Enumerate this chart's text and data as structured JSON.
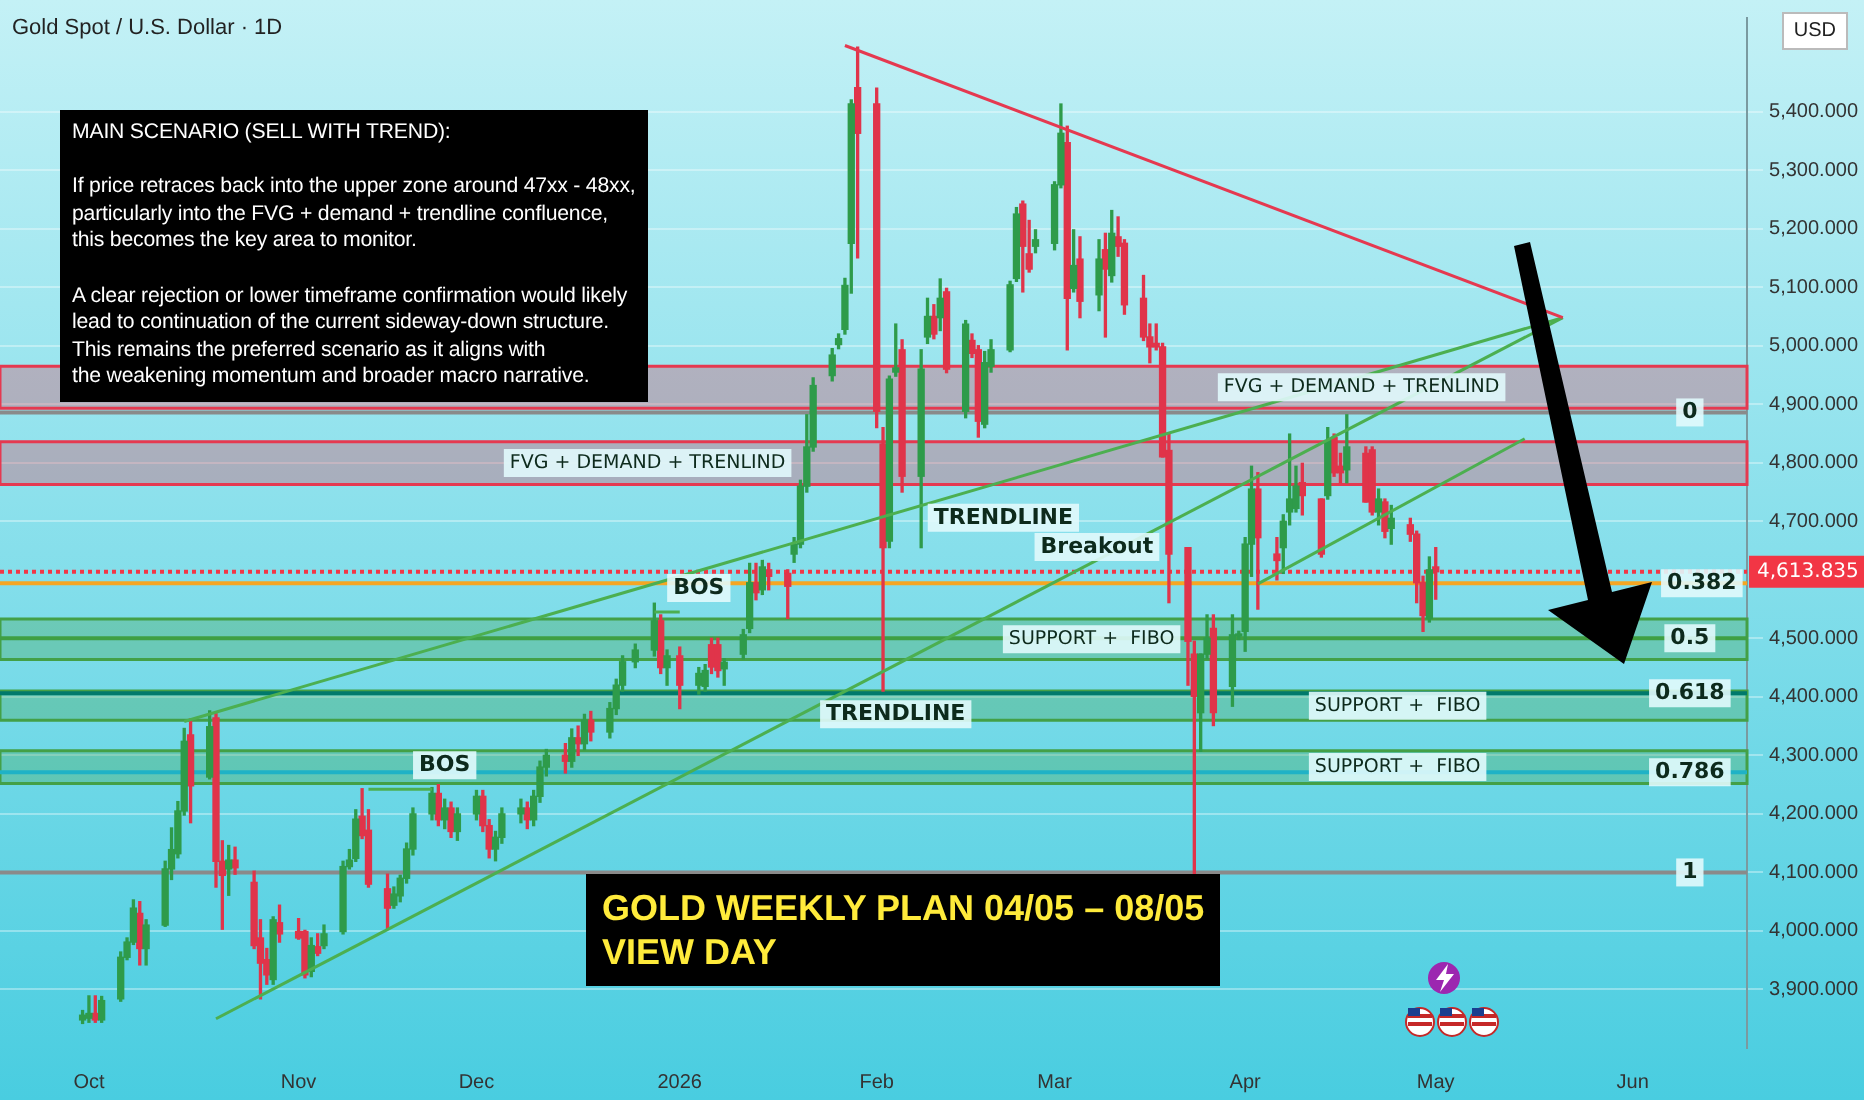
{
  "chart_data": {
    "type": "candlestick",
    "title": "GOLD WEEKLY PLAN 04/05 – 08/05\nVIEW DAY",
    "subtitle": "Gold Spot / U.S. Dollar · 1D",
    "ylabel": "USD",
    "xlim": [
      "2025-09-17",
      "2026-06-19"
    ],
    "xticks": [
      {
        "value": "2025-10-01",
        "label": "Oct"
      },
      {
        "value": "2025-11-03",
        "label": "Nov"
      },
      {
        "value": "2025-12-01",
        "label": "Dec"
      },
      {
        "value": "2026-01-02",
        "label": "2026"
      },
      {
        "value": "2026-02-02",
        "label": "Feb"
      },
      {
        "value": "2026-03-02",
        "label": "Mar"
      },
      {
        "value": "2026-04-01",
        "label": "Apr"
      },
      {
        "value": "2026-05-01",
        "label": "May"
      },
      {
        "value": "2026-06-01",
        "label": "Jun"
      }
    ],
    "ylim": [
      3800,
      5560
    ],
    "yticks": [
      {
        "value": 3900,
        "label": "3,900.000"
      },
      {
        "value": 4000,
        "label": "4,000.000"
      },
      {
        "value": 4100,
        "label": "4,100.000"
      },
      {
        "value": 4200,
        "label": "4,200.000"
      },
      {
        "value": 4300,
        "label": "4,300.000"
      },
      {
        "value": 4400,
        "label": "4,400.000"
      },
      {
        "value": 4500,
        "label": "4,500.000"
      },
      {
        "value": 4700,
        "label": "4,700.000"
      },
      {
        "value": 4800,
        "label": "4,800.000"
      },
      {
        "value": 4900,
        "label": "4,900.000"
      },
      {
        "value": 5000,
        "label": "5,000.000"
      },
      {
        "value": 5100,
        "label": "5,100.000"
      },
      {
        "value": 5200,
        "label": "5,200.000"
      },
      {
        "value": 5300,
        "label": "5,300.000"
      },
      {
        "value": 5400,
        "label": "5,400.000"
      }
    ],
    "grid": "y",
    "legend": false,
    "series": [
      {
        "color": "#2e9b4a",
        "x": [
          "2025-09-30",
          "2025-10-01",
          "2025-10-03",
          "2025-10-06",
          "2025-10-07",
          "2025-10-08",
          "2025-10-10",
          "2025-10-13",
          "2025-10-14",
          "2025-10-15",
          "2025-10-16",
          "2025-10-20",
          "2025-10-23",
          "2025-10-30",
          "2025-11-05",
          "2025-11-07",
          "2025-11-10",
          "2025-11-11",
          "2025-11-12",
          "2025-11-18",
          "2025-11-19",
          "2025-11-20",
          "2025-11-21",
          "2025-11-24",
          "2025-11-26",
          "2025-11-28",
          "2025-12-01",
          "2025-12-04",
          "2025-12-05",
          "2025-12-08",
          "2025-12-10",
          "2025-12-11",
          "2025-12-12",
          "2025-12-16",
          "2025-12-18",
          "2025-12-22",
          "2025-12-23",
          "2025-12-24",
          "2025-12-26",
          "2025-12-29",
          "2025-12-31",
          "2026-01-05",
          "2026-01-06",
          "2026-01-09",
          "2026-01-12",
          "2026-01-13",
          "2026-01-15",
          "2026-01-20",
          "2026-01-21",
          "2026-01-22",
          "2026-01-23",
          "2026-01-26",
          "2026-01-27",
          "2026-01-28",
          "2026-01-29",
          "2026-02-04",
          "2026-02-05",
          "2026-02-09",
          "2026-02-10",
          "2026-02-12",
          "2026-02-16",
          "2026-02-19",
          "2026-02-20",
          "2026-02-23",
          "2026-02-24",
          "2026-02-27",
          "2026-03-02",
          "2026-03-03",
          "2026-03-05",
          "2026-03-09",
          "2026-03-11",
          "2026-03-25",
          "2026-03-26",
          "2026-03-30",
          "2026-03-31",
          "2026-04-01",
          "2026-04-02",
          "2026-04-07",
          "2026-04-08",
          "2026-04-09",
          "2026-04-14",
          "2026-04-17",
          "2026-04-22",
          "2026-04-24",
          "2026-04-30"
        ],
        "ohlc": [
          [
            3848,
            3864,
            3842,
            3856
          ],
          [
            3851,
            3889,
            3844,
            3859
          ],
          [
            3848,
            3888,
            3844,
            3881
          ],
          [
            3884,
            3964,
            3880,
            3955
          ],
          [
            3955,
            3988,
            3951,
            3981
          ],
          [
            3981,
            4053,
            3977,
            4039
          ],
          [
            3970,
            4019,
            3942,
            4010
          ],
          [
            4010,
            4119,
            4008,
            4106
          ],
          [
            4106,
            4176,
            4088,
            4139
          ],
          [
            4132,
            4221,
            4125,
            4205
          ],
          [
            4205,
            4346,
            4198,
            4324
          ],
          [
            4263,
            4376,
            4260,
            4349
          ],
          [
            4106,
            4146,
            4061,
            4121
          ],
          [
            3917,
            4024,
            3909,
            4019
          ],
          [
            3931,
            3988,
            3922,
            3975
          ],
          [
            3975,
            4010,
            3970,
            3995
          ],
          [
            3999,
            4119,
            3995,
            4110
          ],
          [
            4110,
            4139,
            4106,
            4121
          ],
          [
            4124,
            4207,
            4119,
            4191
          ],
          [
            4044,
            4075,
            4039,
            4063
          ],
          [
            4060,
            4095,
            4050,
            4090
          ],
          [
            4090,
            4150,
            4082,
            4140
          ],
          [
            4140,
            4210,
            4130,
            4200
          ],
          [
            4200,
            4245,
            4190,
            4235
          ],
          [
            4190,
            4225,
            4175,
            4210
          ],
          [
            4170,
            4210,
            4155,
            4200
          ],
          [
            4200,
            4240,
            4190,
            4230
          ],
          [
            4140,
            4170,
            4120,
            4160
          ],
          [
            4160,
            4210,
            4150,
            4200
          ],
          [
            4200,
            4225,
            4185,
            4210
          ],
          [
            4190,
            4240,
            4180,
            4230
          ],
          [
            4230,
            4290,
            4220,
            4280
          ],
          [
            4280,
            4310,
            4265,
            4300
          ],
          [
            4290,
            4345,
            4280,
            4330
          ],
          [
            4320,
            4370,
            4310,
            4360
          ],
          [
            4340,
            4390,
            4330,
            4380
          ],
          [
            4380,
            4430,
            4370,
            4420
          ],
          [
            4420,
            4470,
            4410,
            4460
          ],
          [
            4460,
            4490,
            4450,
            4480
          ],
          [
            4480,
            4560,
            4470,
            4530
          ],
          [
            4450,
            4480,
            4420,
            4470
          ],
          [
            4420,
            4450,
            4405,
            4440
          ],
          [
            4418,
            4455,
            4410,
            4445
          ],
          [
            4448,
            4465,
            4420,
            4459
          ],
          [
            4473,
            4515,
            4465,
            4506
          ],
          [
            4517,
            4628,
            4510,
            4595
          ],
          [
            4583,
            4633,
            4575,
            4622
          ],
          [
            4644,
            4672,
            4630,
            4661
          ],
          [
            4661,
            4770,
            4655,
            4760
          ],
          [
            4760,
            4882,
            4750,
            4827
          ],
          [
            4827,
            4945,
            4820,
            4932
          ],
          [
            4949,
            4995,
            4940,
            4984
          ],
          [
            5002,
            5020,
            4995,
            5012
          ],
          [
            5028,
            5115,
            5020,
            5103
          ],
          [
            5175,
            5420,
            5090,
            5413
          ],
          [
            4666,
            4948,
            4655,
            4943
          ],
          [
            4955,
            5037,
            4948,
            4962
          ],
          [
            4777,
            4993,
            4655,
            4960
          ],
          [
            5015,
            5081,
            5004,
            5050
          ],
          [
            5048,
            5114,
            5026,
            5081
          ],
          [
            4888,
            5043,
            4877,
            5037
          ],
          [
            4866,
            4990,
            4860,
            4971
          ],
          [
            4965,
            5010,
            4955,
            4993
          ],
          [
            4993,
            5110,
            4990,
            5104
          ],
          [
            5115,
            5236,
            5110,
            5225
          ],
          [
            5170,
            5198,
            5159,
            5181
          ],
          [
            5175,
            5280,
            5164,
            5275
          ],
          [
            5275,
            5413,
            5270,
            5363
          ],
          [
            5098,
            5198,
            5092,
            5137
          ],
          [
            5087,
            5181,
            5060,
            5148
          ],
          [
            5120,
            5231,
            5109,
            5192
          ],
          [
            4373,
            4473,
            4307,
            4473
          ],
          [
            4473,
            4540,
            4465,
            4500
          ],
          [
            4418,
            4540,
            4384,
            4506
          ],
          [
            4504,
            4512,
            4498,
            4506
          ],
          [
            4512,
            4672,
            4478,
            4661
          ],
          [
            4661,
            4794,
            4606,
            4755
          ],
          [
            4655,
            4711,
            4611,
            4700
          ],
          [
            4716,
            4849,
            4694,
            4738
          ],
          [
            4722,
            4794,
            4716,
            4760
          ],
          [
            4744,
            4860,
            4738,
            4838
          ],
          [
            4788,
            4882,
            4766,
            4827
          ],
          [
            4716,
            4755,
            4694,
            4738
          ],
          [
            4688,
            4727,
            4661,
            4705
          ],
          [
            4534,
            4639,
            4528,
            4617
          ]
        ]
      },
      {
        "color": "#e0344a",
        "x": [
          "2025-10-02",
          "2025-10-09",
          "2025-10-17",
          "2025-10-21",
          "2025-10-22",
          "2025-10-24",
          "2025-10-27",
          "2025-10-28",
          "2025-10-29",
          "2025-10-31",
          "2025-11-03",
          "2025-11-04",
          "2025-11-06",
          "2025-11-13",
          "2025-11-14",
          "2025-11-17",
          "2025-11-25",
          "2025-11-27",
          "2025-12-02",
          "2025-12-03",
          "2025-12-09",
          "2025-12-15",
          "2025-12-17",
          "2025-12-19",
          "2025-12-30",
          "2026-01-02",
          "2026-01-07",
          "2026-01-08",
          "2026-01-14",
          "2026-01-16",
          "2026-01-19",
          "2026-01-30",
          "2026-02-02",
          "2026-02-03",
          "2026-02-06",
          "2026-02-11",
          "2026-02-13",
          "2026-02-17",
          "2026-02-18",
          "2026-02-25",
          "2026-02-26",
          "2026-03-04",
          "2026-03-06",
          "2026-03-10",
          "2026-03-12",
          "2026-03-13",
          "2026-03-16",
          "2026-03-17",
          "2026-03-18",
          "2026-03-19",
          "2026-03-20",
          "2026-03-23",
          "2026-03-24",
          "2026-03-27",
          "2026-04-03",
          "2026-04-06",
          "2026-04-10",
          "2026-04-13",
          "2026-04-15",
          "2026-04-16",
          "2026-04-20",
          "2026-04-21",
          "2026-04-23",
          "2026-04-27",
          "2026-04-28",
          "2026-04-29",
          "2026-05-01"
        ],
        "ohlc": [
          [
            3859,
            3889,
            3844,
            3848
          ],
          [
            4030,
            4050,
            3942,
            3970
          ],
          [
            4335,
            4362,
            4185,
            4248
          ],
          [
            4364,
            4371,
            4075,
            4119
          ],
          [
            4119,
            4154,
            4003,
            4095
          ],
          [
            4121,
            4143,
            4097,
            4108
          ],
          [
            4083,
            4102,
            3970,
            3975
          ],
          [
            3988,
            4019,
            3884,
            3945
          ],
          [
            3951,
            3970,
            3909,
            3925
          ],
          [
            4014,
            4044,
            3981,
            3995
          ],
          [
            3999,
            4021,
            3986,
            3988
          ],
          [
            3999,
            4001,
            3920,
            3925
          ],
          [
            3973,
            3995,
            3958,
            3962
          ],
          [
            4196,
            4243,
            4158,
            4163
          ],
          [
            4172,
            4207,
            4075,
            4080
          ],
          [
            4072,
            4097,
            4003,
            4039
          ],
          [
            4235,
            4250,
            4180,
            4190
          ],
          [
            4210,
            4220,
            4160,
            4170
          ],
          [
            4230,
            4240,
            4170,
            4180
          ],
          [
            4180,
            4190,
            4125,
            4140
          ],
          [
            4210,
            4220,
            4175,
            4190
          ],
          [
            4300,
            4320,
            4270,
            4290
          ],
          [
            4330,
            4350,
            4300,
            4320
          ],
          [
            4360,
            4375,
            4325,
            4340
          ],
          [
            4530,
            4540,
            4440,
            4450
          ],
          [
            4470,
            4485,
            4380,
            4420
          ],
          [
            4489,
            4500,
            4440,
            4451
          ],
          [
            4489,
            4500,
            4434,
            4445
          ],
          [
            4595,
            4628,
            4566,
            4578
          ],
          [
            4617,
            4628,
            4583,
            4606
          ],
          [
            4611,
            4617,
            4534,
            4589
          ],
          [
            5441,
            5510,
            5150,
            5363
          ],
          [
            5413,
            5440,
            4860,
            4888
          ],
          [
            4832,
            4860,
            4410,
            4655
          ],
          [
            4993,
            5010,
            4750,
            4777
          ],
          [
            5050,
            5070,
            5012,
            5020
          ],
          [
            5092,
            5098,
            4954,
            4960
          ],
          [
            5009,
            5020,
            4980,
            4987
          ],
          [
            4993,
            5000,
            4844,
            4871
          ],
          [
            5242,
            5247,
            5092,
            5170
          ],
          [
            5157,
            5214,
            5126,
            5131
          ],
          [
            5347,
            5375,
            4993,
            5081
          ],
          [
            5148,
            5186,
            5048,
            5076
          ],
          [
            5164,
            5192,
            5015,
            5131
          ],
          [
            5186,
            5220,
            5153,
            5170
          ],
          [
            5175,
            5181,
            5054,
            5070
          ],
          [
            5081,
            5120,
            5009,
            5015
          ],
          [
            5015,
            5037,
            4971,
            4998
          ],
          [
            5004,
            5037,
            4993,
            4998
          ],
          [
            4998,
            5004,
            4810,
            4810
          ],
          [
            4821,
            4849,
            4561,
            4644
          ],
          [
            4655,
            4655,
            4420,
            4495
          ],
          [
            4473,
            4495,
            4097,
            4401
          ],
          [
            4517,
            4540,
            4351,
            4373
          ],
          [
            4755,
            4783,
            4550,
            4672
          ],
          [
            4644,
            4672,
            4600,
            4633
          ],
          [
            4766,
            4799,
            4711,
            4744
          ],
          [
            4738,
            4738,
            4639,
            4644
          ],
          [
            4843,
            4849,
            4777,
            4783
          ],
          [
            4794,
            4816,
            4766,
            4783
          ],
          [
            4816,
            4827,
            4733,
            4733
          ],
          [
            4822,
            4827,
            4711,
            4716
          ],
          [
            4733,
            4738,
            4672,
            4683
          ],
          [
            4694,
            4705,
            4666,
            4678
          ],
          [
            4678,
            4683,
            4561,
            4595
          ],
          [
            4595,
            4606,
            4512,
            4539
          ],
          [
            4622,
            4655,
            4567,
            4613.835
          ]
        ]
      },
      {
        "type": "line",
        "color": "#e53950",
        "x": [
          "2026-01-28",
          "2026-05-21"
        ],
        "values": [
          5513,
          5048
        ]
      },
      {
        "type": "line",
        "color": "#4caf50",
        "x": [
          "2025-10-16",
          "2026-05-21"
        ],
        "values": [
          4358,
          5048
        ]
      },
      {
        "type": "line",
        "color": "#4caf50",
        "x": [
          "2025-10-21",
          "2026-05-21"
        ],
        "values": [
          3850,
          5048
        ]
      },
      {
        "type": "line",
        "color": "#4caf50",
        "x": [
          "2026-04-03",
          "2026-05-15"
        ],
        "values": [
          4593,
          4841
        ]
      },
      {
        "type": "line",
        "color": "#4caf50",
        "x": [
          "2025-11-14",
          "2025-11-24"
        ],
        "values": [
          4242,
          4242
        ]
      },
      {
        "type": "line",
        "color": "#4caf50",
        "x": [
          "2025-12-29",
          "2026-01-02"
        ],
        "values": [
          4545,
          4545
        ]
      }
    ],
    "bands": [
      {
        "axis": "y",
        "from": 4893,
        "to": 4965,
        "label": "FVG + DEMAND + TRENLIND",
        "color": "#e53950"
      },
      {
        "axis": "y",
        "from": 4763,
        "to": 4836,
        "label": "FVG + DEMAND + TRENLIND",
        "color": "#e53950"
      },
      {
        "axis": "y",
        "from": 4464,
        "to": 4533,
        "label": "SUPPORT +  FIBO",
        "color": "#43a047"
      },
      {
        "axis": "y",
        "from": 4360,
        "to": 4410,
        "label": "SUPPORT +  FIBO",
        "color": "#43a047"
      },
      {
        "axis": "y",
        "from": 4252,
        "to": 4308,
        "label": "SUPPORT +  FIBO",
        "color": "#43a047"
      }
    ],
    "ref_lines": [
      {
        "axis": "y",
        "value": 4886,
        "color": "#8a8a8a"
      },
      {
        "axis": "y",
        "value": 4594,
        "color": "#f5a623"
      },
      {
        "axis": "y",
        "value": 4500,
        "color": "#3f9f43"
      },
      {
        "axis": "y",
        "value": 4406,
        "color": "#00796b"
      },
      {
        "axis": "y",
        "value": 4271,
        "color": "#1fb2c6"
      },
      {
        "axis": "y",
        "value": 4100,
        "color": "#8a8a8a"
      },
      {
        "axis": "y",
        "value": 4613.835,
        "label": "4,613.835",
        "color": "#f23645",
        "line_style": "dotted"
      }
    ],
    "annotations": [
      "MAIN SCENARIO (SELL WITH TREND):\n\nIf price retraces back into the upper zone around 47xx - 48xx,\nparticularly into the FVG + demand + trendline confluence,\nthis becomes the key area to monitor.\n\nA clear rejection or lower timeframe confirmation would likely\nlead to continuation of the current sideway-down structure.\nThis remains the preferred scenario as it aligns with\nthe weakening momentum and broader macro narrative.",
      {
        "text": "BOS",
        "x": "2025-11-26",
        "y": 4242
      },
      {
        "text": "BOS",
        "x": "2026-01-05",
        "y": 4545
      },
      {
        "text": "TRENDLINE",
        "x": "2026-02-04",
        "y": 4706
      },
      {
        "text": "TRENDLINE",
        "x": "2026-02-05",
        "y": 4401
      },
      {
        "text": "Breakout",
        "x": "2026-03-20",
        "y": 4697
      },
      {
        "text": "0",
        "x": "2026-06-10",
        "y": 4886
      },
      {
        "text": "0.382",
        "x": "2026-06-10",
        "y": 4594
      },
      {
        "text": "0.5",
        "x": "2026-06-10",
        "y": 4500
      },
      {
        "text": "0.618",
        "x": "2026-06-10",
        "y": 4406
      },
      {
        "text": "0.786",
        "x": "2026-06-10",
        "y": 4271
      },
      {
        "text": "1",
        "x": "2026-06-10",
        "y": 4100
      }
    ]
  }
}
